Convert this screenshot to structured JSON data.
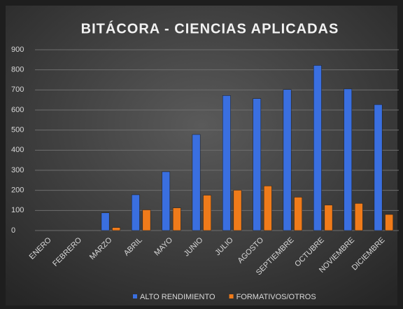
{
  "chart_data": {
    "type": "bar",
    "title": "BITÁCORA - CIENCIAS APLICADAS",
    "categories": [
      "ENERO",
      "FEBRERO",
      "MARZO",
      "ABRIL",
      "MAYO",
      "JUNIO",
      "JULIO",
      "AGOSTO",
      "SEPTIEMBRE",
      "OCTUBRE",
      "NOVIEMBRE",
      "DICIEMBRE"
    ],
    "series": [
      {
        "name": "ALTO RENDIMIENTO",
        "color": "#3a6fe0",
        "values": [
          0,
          0,
          88,
          178,
          293,
          478,
          672,
          657,
          702,
          822,
          705,
          627
        ]
      },
      {
        "name": "FORMATIVOS/OTROS",
        "color": "#f07b1a",
        "values": [
          0,
          0,
          15,
          103,
          113,
          176,
          201,
          222,
          166,
          127,
          135,
          80
        ]
      }
    ],
    "ylim": [
      0,
      900
    ],
    "yticks": [
      0,
      100,
      200,
      300,
      400,
      500,
      600,
      700,
      800,
      900
    ],
    "grid": true,
    "legend": "bottom"
  }
}
